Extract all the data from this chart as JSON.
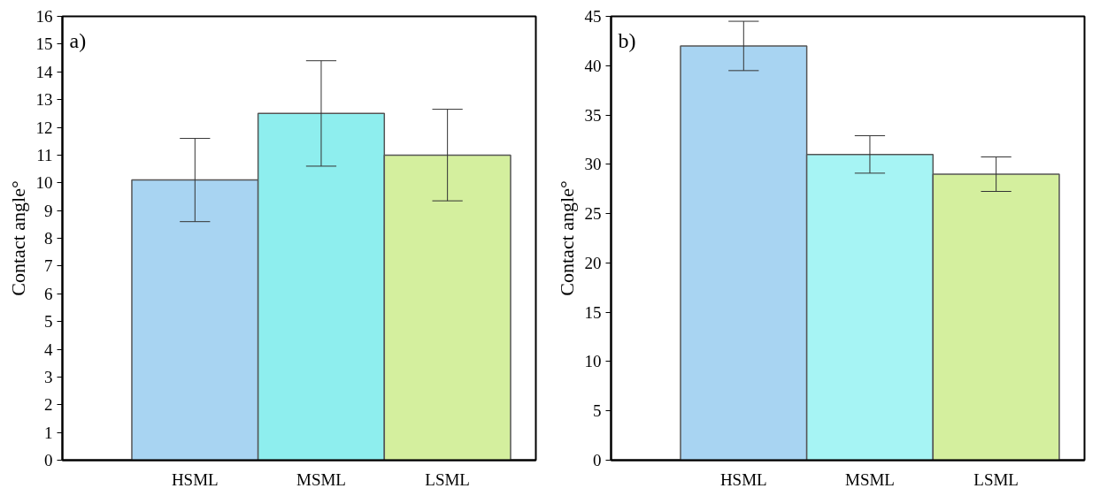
{
  "chart_data": [
    {
      "type": "bar",
      "annotations": [
        "a)"
      ],
      "ylabel": "Contact angle°",
      "categories": [
        "HSML",
        "MSML",
        "LSML"
      ],
      "values": [
        10.1,
        12.5,
        11.0
      ],
      "errors": [
        1.5,
        1.9,
        1.65
      ],
      "colors": [
        "#a8d4f2",
        "#8eeeee",
        "#d4ef9e"
      ],
      "ylim": [
        0,
        16
      ],
      "yticks": [
        0,
        1,
        2,
        3,
        4,
        5,
        6,
        7,
        8,
        9,
        10,
        11,
        12,
        13,
        14,
        15,
        16
      ],
      "grid": false
    },
    {
      "type": "bar",
      "annotations": [
        "b)"
      ],
      "ylabel": "Contact angle°",
      "categories": [
        "HSML",
        "MSML",
        "LSML"
      ],
      "values": [
        42,
        31,
        29
      ],
      "errors": [
        2.5,
        1.9,
        1.75
      ],
      "colors": [
        "#a8d4f2",
        "#a6f4f4",
        "#d4ef9e"
      ],
      "ylim": [
        0,
        45
      ],
      "yticks": [
        0,
        5,
        10,
        15,
        20,
        25,
        30,
        35,
        40,
        45
      ],
      "grid": false
    }
  ]
}
